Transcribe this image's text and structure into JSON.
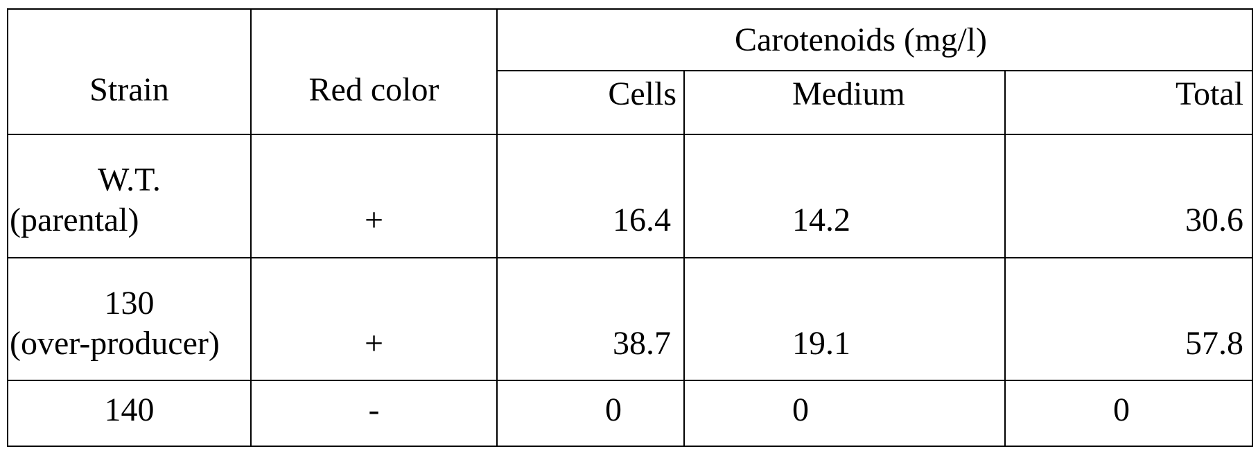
{
  "table": {
    "header": {
      "strain": "Strain",
      "red_color": "Red color",
      "carotenoids": "Carotenoids (mg/l)",
      "cells": "Cells",
      "medium": "Medium",
      "total": "Total"
    },
    "rows": [
      {
        "strain_line1": "W.T.",
        "strain_line2": "(parental)",
        "red_color": "+",
        "cells": "16.4",
        "medium": "14.2",
        "total": "30.6"
      },
      {
        "strain_line1": "130",
        "strain_line2": "(over-producer)",
        "red_color": "+",
        "cells": "38.7",
        "medium": "19.1",
        "total": "57.8"
      },
      {
        "strain_line1": "140",
        "strain_line2": "",
        "red_color": "-",
        "cells": "0",
        "medium": "0",
        "total": "0"
      }
    ]
  }
}
